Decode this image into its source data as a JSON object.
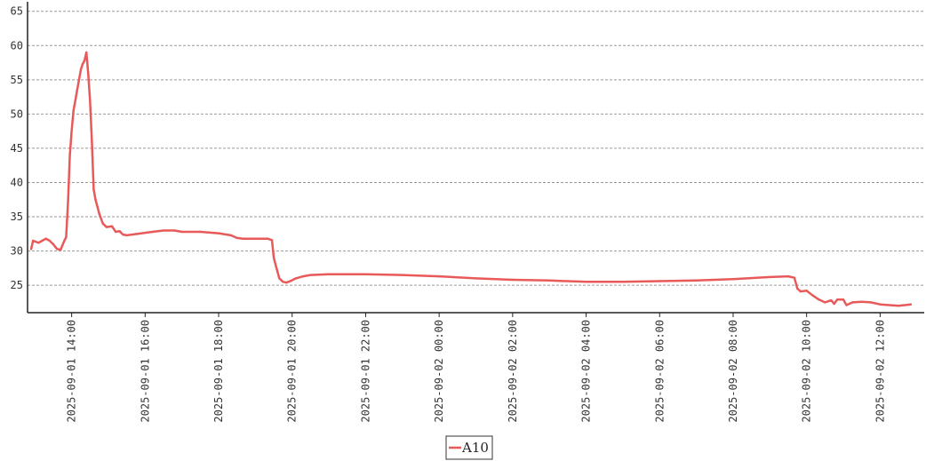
{
  "chart_data": {
    "type": "line",
    "title": "",
    "xlabel": "",
    "ylabel": "",
    "ylim": [
      21,
      66
    ],
    "yticks": [
      25,
      30,
      35,
      40,
      45,
      50,
      55,
      60,
      65
    ],
    "grid": "horizontal dashed",
    "legend_position": "bottom-center",
    "xticks": [
      {
        "t": "2025-09-01 14:00",
        "label": "2025-09-01  14:00"
      },
      {
        "t": "2025-09-01 16:00",
        "label": "2025-09-01  16:00"
      },
      {
        "t": "2025-09-01 18:00",
        "label": "2025-09-01  18:00"
      },
      {
        "t": "2025-09-01 20:00",
        "label": "2025-09-01  20:00"
      },
      {
        "t": "2025-09-01 22:00",
        "label": "2025-09-01  22:00"
      },
      {
        "t": "2025-09-02 00:00",
        "label": "2025-09-02  00:00"
      },
      {
        "t": "2025-09-02 02:00",
        "label": "2025-09-02  02:00"
      },
      {
        "t": "2025-09-02 04:00",
        "label": "2025-09-02  04:00"
      },
      {
        "t": "2025-09-02 06:00",
        "label": "2025-09-02  06:00"
      },
      {
        "t": "2025-09-02 08:00",
        "label": "2025-09-02  08:00"
      },
      {
        "t": "2025-09-02 10:00",
        "label": "2025-09-02  10:00"
      },
      {
        "t": "2025-09-02 12:00",
        "label": "2025-09-02  12:00"
      }
    ],
    "xlim": [
      "2025-09-01 12:48",
      "2025-09-02 13:12"
    ],
    "series": [
      {
        "name": "A10",
        "color": "#e85a5a",
        "points": [
          [
            "2025-09-01 12:54",
            30.3
          ],
          [
            "2025-09-01 12:57",
            31.5
          ],
          [
            "2025-09-01 13:06",
            31.2
          ],
          [
            "2025-09-01 13:12",
            31.5
          ],
          [
            "2025-09-01 13:18",
            31.8
          ],
          [
            "2025-09-01 13:24",
            31.5
          ],
          [
            "2025-09-01 13:30",
            31.0
          ],
          [
            "2025-09-01 13:36",
            30.3
          ],
          [
            "2025-09-01 13:42",
            30.2
          ],
          [
            "2025-09-01 13:48",
            31.5
          ],
          [
            "2025-09-01 13:51",
            32.0
          ],
          [
            "2025-09-01 13:54",
            37.0
          ],
          [
            "2025-09-01 13:57",
            44.0
          ],
          [
            "2025-09-01 14:00",
            47.5
          ],
          [
            "2025-09-01 14:03",
            50.5
          ],
          [
            "2025-09-01 14:06",
            52.0
          ],
          [
            "2025-09-01 14:09",
            53.5
          ],
          [
            "2025-09-01 14:12",
            55.0
          ],
          [
            "2025-09-01 14:15",
            56.5
          ],
          [
            "2025-09-01 14:18",
            57.3
          ],
          [
            "2025-09-01 14:21",
            57.8
          ],
          [
            "2025-09-01 14:24",
            59.0
          ],
          [
            "2025-09-01 14:27",
            56.0
          ],
          [
            "2025-09-01 14:30",
            52.0
          ],
          [
            "2025-09-01 14:33",
            46.0
          ],
          [
            "2025-09-01 14:36",
            39.0
          ],
          [
            "2025-09-01 14:39",
            37.5
          ],
          [
            "2025-09-01 14:45",
            35.5
          ],
          [
            "2025-09-01 14:51",
            34.0
          ],
          [
            "2025-09-01 14:57",
            33.5
          ],
          [
            "2025-09-01 15:06",
            33.6
          ],
          [
            "2025-09-01 15:12",
            32.8
          ],
          [
            "2025-09-01 15:18",
            32.9
          ],
          [
            "2025-09-01 15:24",
            32.4
          ],
          [
            "2025-09-01 15:30",
            32.3
          ],
          [
            "2025-09-01 15:48",
            32.5
          ],
          [
            "2025-09-01 16:12",
            32.8
          ],
          [
            "2025-09-01 16:30",
            33.0
          ],
          [
            "2025-09-01 16:48",
            33.0
          ],
          [
            "2025-09-01 17:00",
            32.8
          ],
          [
            "2025-09-01 17:30",
            32.8
          ],
          [
            "2025-09-01 18:00",
            32.6
          ],
          [
            "2025-09-01 18:20",
            32.3
          ],
          [
            "2025-09-01 18:30",
            31.9
          ],
          [
            "2025-09-01 18:40",
            31.8
          ],
          [
            "2025-09-01 19:00",
            31.8
          ],
          [
            "2025-09-01 19:20",
            31.8
          ],
          [
            "2025-09-01 19:27",
            31.6
          ],
          [
            "2025-09-01 19:30",
            29.0
          ],
          [
            "2025-09-01 19:33",
            28.0
          ],
          [
            "2025-09-01 19:36",
            27.0
          ],
          [
            "2025-09-01 19:39",
            26.0
          ],
          [
            "2025-09-01 19:45",
            25.5
          ],
          [
            "2025-09-01 19:51",
            25.4
          ],
          [
            "2025-09-01 19:57",
            25.6
          ],
          [
            "2025-09-01 20:06",
            26.0
          ],
          [
            "2025-09-01 20:18",
            26.3
          ],
          [
            "2025-09-01 20:30",
            26.5
          ],
          [
            "2025-09-01 21:00",
            26.6
          ],
          [
            "2025-09-01 22:00",
            26.6
          ],
          [
            "2025-09-01 23:00",
            26.5
          ],
          [
            "2025-09-02 00:00",
            26.3
          ],
          [
            "2025-09-02 01:00",
            26.0
          ],
          [
            "2025-09-02 02:00",
            25.8
          ],
          [
            "2025-09-02 03:00",
            25.7
          ],
          [
            "2025-09-02 04:00",
            25.5
          ],
          [
            "2025-09-02 05:00",
            25.5
          ],
          [
            "2025-09-02 06:00",
            25.6
          ],
          [
            "2025-09-02 07:00",
            25.7
          ],
          [
            "2025-09-02 08:00",
            25.9
          ],
          [
            "2025-09-02 09:00",
            26.2
          ],
          [
            "2025-09-02 09:30",
            26.3
          ],
          [
            "2025-09-02 09:40",
            26.1
          ],
          [
            "2025-09-02 09:45",
            24.5
          ],
          [
            "2025-09-02 09:50",
            24.1
          ],
          [
            "2025-09-02 10:00",
            24.2
          ],
          [
            "2025-09-02 10:10",
            23.5
          ],
          [
            "2025-09-02 10:20",
            22.9
          ],
          [
            "2025-09-02 10:30",
            22.5
          ],
          [
            "2025-09-02 10:40",
            22.8
          ],
          [
            "2025-09-02 10:45",
            22.3
          ],
          [
            "2025-09-02 10:50",
            22.9
          ],
          [
            "2025-09-02 11:00",
            22.9
          ],
          [
            "2025-09-02 11:05",
            22.1
          ],
          [
            "2025-09-02 11:15",
            22.5
          ],
          [
            "2025-09-02 11:30",
            22.6
          ],
          [
            "2025-09-02 11:45",
            22.5
          ],
          [
            "2025-09-02 12:00",
            22.2
          ],
          [
            "2025-09-02 12:30",
            22.0
          ],
          [
            "2025-09-02 12:50",
            22.2
          ]
        ]
      }
    ]
  },
  "colors": {
    "line": "#e85a5a",
    "grid": "#999999",
    "axis": "#222222",
    "text": "#333333"
  }
}
